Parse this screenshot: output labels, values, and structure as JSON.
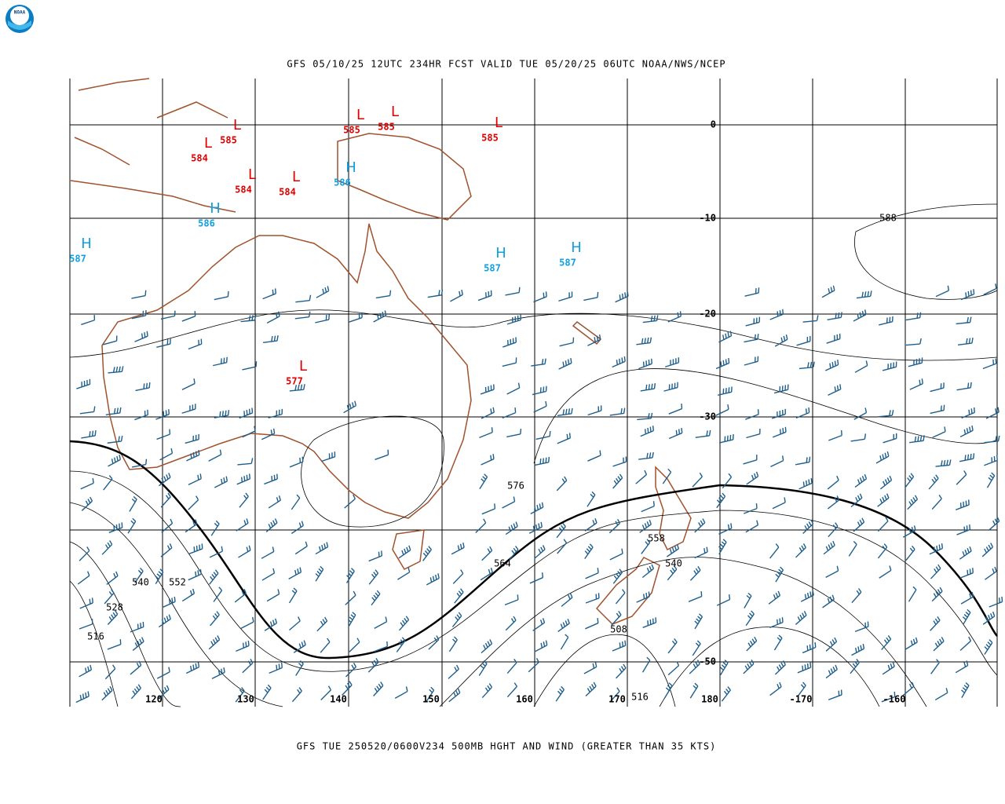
{
  "header": "GFS 05/10/25 12UTC 234HR FCST VALID TUE 05/20/25 06UTC NOAA/NWS/NCEP",
  "footer": "GFS TUE 250520/0600V234 500MB HGHT AND WIND (GREATER THAN 35 KTS)",
  "logo": "NOAA",
  "lon_labels": [
    "120",
    "130",
    "140",
    "150",
    "160",
    "170",
    "180",
    "-170",
    "-160"
  ],
  "lat_labels": [
    "0",
    "-10",
    "-20",
    "-30",
    "-50"
  ],
  "centers": [
    {
      "symbol": "L",
      "value": 585
    },
    {
      "symbol": "L",
      "value": 584
    },
    {
      "symbol": "L",
      "value": 584
    },
    {
      "symbol": "L",
      "value": 584
    },
    {
      "symbol": "L",
      "value": 585
    },
    {
      "symbol": "L",
      "value": 585
    },
    {
      "symbol": "L",
      "value": 585
    },
    {
      "symbol": "L",
      "value": 577
    },
    {
      "symbol": "H",
      "value": 586
    },
    {
      "symbol": "H",
      "value": 586
    },
    {
      "symbol": "H",
      "value": 587
    },
    {
      "symbol": "H",
      "value": 587
    },
    {
      "symbol": "H",
      "value": 587
    }
  ],
  "contour_labels": [
    576,
    564,
    558,
    540,
    540,
    552,
    528,
    516,
    508,
    516,
    588
  ]
}
